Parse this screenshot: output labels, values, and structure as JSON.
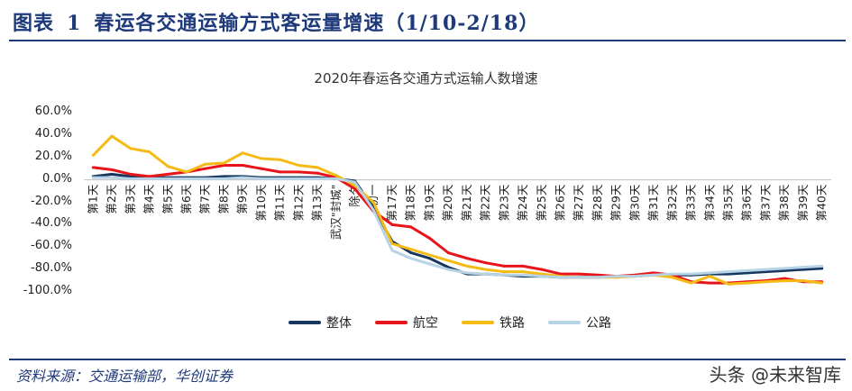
{
  "header": {
    "title_prefix": "图表",
    "title_num": "1",
    "title_text": "春运各交通运输方式客运量增速（1/10-2/18）"
  },
  "footer": {
    "source": "资料来源：交通运输部，华创证券",
    "watermark": "头条 @未来智库"
  },
  "chart_data": {
    "type": "line",
    "title": "2020年春运各交通方式运输人数增速",
    "ylim": [
      -100,
      60
    ],
    "ytick_labels": [
      "60.0%",
      "40.0%",
      "20.0%",
      "0.0%",
      "-20.0%",
      "-40.0%",
      "-60.0%",
      "-80.0%",
      "-100.0%"
    ],
    "categories": [
      "第1天",
      "第2天",
      "第3天",
      "第4天",
      "第5天",
      "第6天",
      "第7天",
      "第8天",
      "第9天",
      "第10天",
      "第11天",
      "第12天",
      "第13天",
      "武汉\"封城\"",
      "除夕",
      "初一",
      "第17天",
      "第18天",
      "第19天",
      "第20天",
      "第21天",
      "第22天",
      "第23天",
      "第24天",
      "第25天",
      "第26天",
      "第27天",
      "第28天",
      "第29天",
      "第30天",
      "第31天",
      "第32天",
      "第33天",
      "第34天",
      "第35天",
      "第36天",
      "第37天",
      "第38天",
      "第39天",
      "第40天"
    ],
    "legend_position": "bottom",
    "series": [
      {
        "name": "整体",
        "color": "#17375e",
        "values": [
          3,
          5,
          3,
          2,
          2,
          2,
          2,
          3,
          3,
          2,
          2,
          2,
          2,
          1,
          -1,
          -25,
          -55,
          -65,
          -70,
          -78,
          -84,
          -84,
          -85,
          -86,
          -86,
          -87,
          -87,
          -87,
          -86,
          -86,
          -85,
          -85,
          -85,
          -84,
          -84,
          -83,
          -82,
          -81,
          -80,
          -79
        ]
      },
      {
        "name": "航空",
        "color": "#e8141b",
        "values": [
          11,
          9,
          5,
          3,
          5,
          7,
          10,
          13,
          13,
          10,
          7,
          7,
          6,
          2,
          -8,
          -28,
          -40,
          -42,
          -52,
          -65,
          -70,
          -74,
          -77,
          -77,
          -80,
          -84,
          -84,
          -85,
          -86,
          -85,
          -83,
          -85,
          -91,
          -92,
          -92,
          -91,
          -90,
          -88,
          -91,
          -91
        ]
      },
      {
        "name": "铁路",
        "color": "#f5bb15",
        "values": [
          22,
          39,
          28,
          25,
          12,
          7,
          14,
          15,
          24,
          19,
          18,
          13,
          11,
          4,
          -5,
          -20,
          -57,
          -62,
          -67,
          -72,
          -77,
          -80,
          -82,
          -82,
          -84,
          -86,
          -87,
          -87,
          -87,
          -86,
          -85,
          -87,
          -92,
          -86,
          -93,
          -92,
          -91,
          -90,
          -90,
          -92
        ]
      },
      {
        "name": "公路",
        "color": "#b7d3e6",
        "values": [
          2,
          2,
          1,
          1,
          1,
          1,
          1,
          1,
          2,
          1,
          1,
          1,
          1,
          1,
          -2,
          -27,
          -63,
          -70,
          -75,
          -80,
          -83,
          -84,
          -85,
          -85,
          -86,
          -87,
          -87,
          -87,
          -86,
          -86,
          -85,
          -84,
          -84,
          -83,
          -82,
          -81,
          -80,
          -79,
          -78,
          -77
        ]
      }
    ]
  }
}
